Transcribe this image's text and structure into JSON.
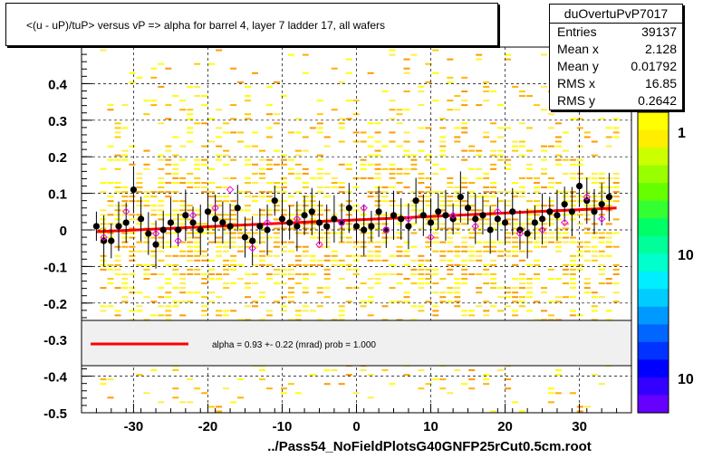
{
  "title": "<(u - uP)/tuP> versus   vP => alpha for barrel 4, layer 7 ladder 17, all wafers",
  "footer": "../Pass54_NoFieldPlotsG40GNFP25rCut0.5cm.root",
  "stats": {
    "name": "duOvertuPvP7017",
    "rows": [
      {
        "label": "Entries",
        "value": "39137"
      },
      {
        "label": "Mean x",
        "value": "2.128"
      },
      {
        "label": "Mean y",
        "value": "0.01792"
      },
      {
        "label": "RMS x",
        "value": "16.85"
      },
      {
        "label": "RMS y",
        "value": "0.2642"
      }
    ]
  },
  "fit_legend": "alpha =    0.93 +-  0.22 (mrad) prob = 1.000",
  "colors": {
    "fit_line": "#ff0000",
    "profile_marker": "#000000",
    "open_marker": "#ff00ff"
  },
  "chart_data": {
    "type": "scatter",
    "xlim": [
      -37,
      37
    ],
    "ylim": [
      -0.5,
      0.5
    ],
    "x_ticks": [
      -30,
      -20,
      -10,
      0,
      10,
      20,
      30
    ],
    "y_ticks": [
      0.4,
      0.3,
      0.2,
      0.1,
      0,
      -0.1,
      -0.2,
      -0.3,
      -0.4,
      -0.5
    ],
    "y_tick_labels": [
      "0.4",
      "0.3",
      "0.2",
      "0.1",
      "0",
      "-0.1",
      "-0.2",
      "-0.3",
      "-0.4",
      "-0.5"
    ],
    "x_tick_labels": [
      "-30",
      "-20",
      "-10",
      "0",
      "10",
      "20",
      "30"
    ],
    "grid": true,
    "palette_labels": [
      "1",
      "10",
      "10"
    ],
    "fit_line": {
      "x": [
        -35,
        35
      ],
      "y": [
        -0.005,
        0.06
      ]
    },
    "profile": {
      "x": [
        -35,
        -34,
        -33,
        -32,
        -31,
        -30,
        -29,
        -28,
        -27,
        -26,
        -25,
        -24,
        -23,
        -22,
        -21,
        -20,
        -19,
        -18,
        -17,
        -16,
        -15,
        -14,
        -13,
        -12,
        -11,
        -10,
        -9,
        -8,
        -7,
        -6,
        -5,
        -4,
        -3,
        -2,
        -1,
        0,
        1,
        2,
        3,
        4,
        5,
        6,
        7,
        8,
        9,
        10,
        11,
        12,
        13,
        14,
        15,
        16,
        17,
        18,
        19,
        20,
        21,
        22,
        23,
        24,
        25,
        26,
        27,
        28,
        29,
        30,
        31,
        32,
        33,
        34
      ],
      "y": [
        0.01,
        -0.03,
        -0.03,
        0.01,
        0.02,
        0.11,
        0.03,
        -0.01,
        -0.04,
        0.0,
        0.02,
        0.0,
        0.04,
        0.02,
        0.0,
        0.05,
        0.03,
        0.02,
        0.01,
        0.06,
        -0.02,
        -0.03,
        0.01,
        0.0,
        0.08,
        0.03,
        0.02,
        0.01,
        0.04,
        0.05,
        0.02,
        0.01,
        0.03,
        0.02,
        0.06,
        0.01,
        0.0,
        0.01,
        0.05,
        0.0,
        0.04,
        0.03,
        0.01,
        0.08,
        0.04,
        0.02,
        0.05,
        0.04,
        0.03,
        0.09,
        0.06,
        0.03,
        0.04,
        0.0,
        0.03,
        0.02,
        0.05,
        0.0,
        -0.01,
        0.02,
        0.03,
        0.05,
        0.04,
        0.07,
        0.05,
        0.12,
        0.08,
        0.05,
        0.07,
        0.09
      ]
    },
    "open_markers": {
      "x": [
        -34,
        -31,
        -27,
        -24,
        -22,
        -19,
        -17,
        -14,
        -12,
        -8,
        -5,
        -2,
        1,
        4,
        7,
        10,
        13,
        16,
        19,
        22,
        25,
        28,
        31,
        33
      ],
      "y": [
        -0.02,
        0.05,
        -0.01,
        -0.03,
        0.04,
        0.06,
        0.11,
        -0.05,
        0.02,
        0.03,
        -0.04,
        0.02,
        0.06,
        0.0,
        0.03,
        -0.02,
        0.04,
        0.01,
        0.05,
        -0.01,
        0.0,
        0.02,
        0.09,
        0.03
      ]
    }
  }
}
